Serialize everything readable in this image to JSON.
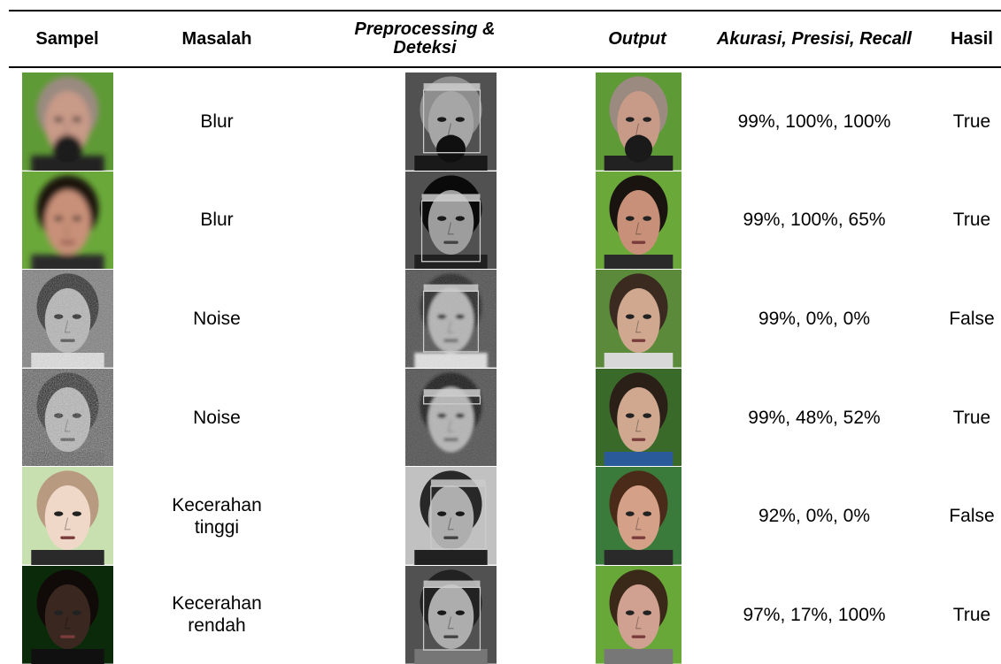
{
  "table": {
    "header": [
      "Sampel",
      "Masalah",
      "Preprocessing & Deteksi",
      "Output",
      "Akurasi, Presisi, Recall",
      "Hasil"
    ],
    "rows": [
      {
        "masalah": "Blur",
        "metrics": "99%, 100%, 100%",
        "hasil": "True"
      },
      {
        "masalah": "Blur",
        "metrics": "99%, 100%, 65%",
        "hasil": "True"
      },
      {
        "masalah": "Noise",
        "metrics": "99%, 0%, 0%",
        "hasil": "False"
      },
      {
        "masalah": "Noise",
        "metrics": "99%, 48%, 52%",
        "hasil": "True"
      },
      {
        "masalah": "Kecerahan tinggi",
        "metrics": "92%, 0%, 0%",
        "hasil": "False"
      },
      {
        "masalah": "Kecerahan rendah",
        "metrics": "97%, 17%, 100%",
        "hasil": "True"
      }
    ]
  }
}
